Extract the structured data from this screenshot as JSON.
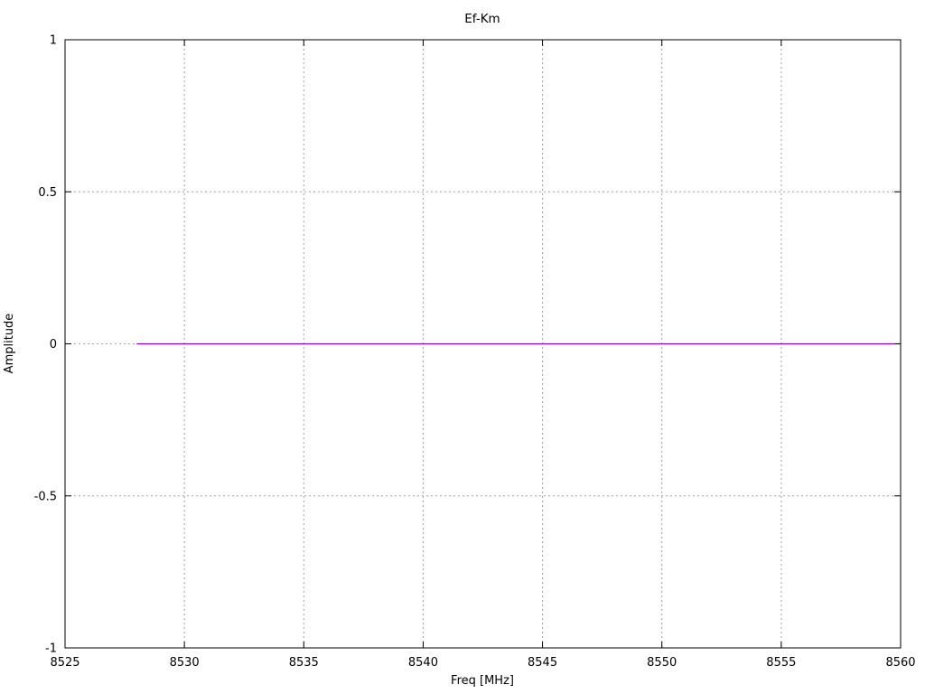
{
  "chart_data": {
    "type": "line",
    "title": "Ef-Km",
    "xlabel": "Freq [MHz]",
    "ylabel": "Amplitude",
    "xlim": [
      8525,
      8560
    ],
    "ylim": [
      -1,
      1
    ],
    "x_ticks": [
      8525,
      8530,
      8535,
      8540,
      8545,
      8550,
      8555,
      8560
    ],
    "y_ticks": [
      -1,
      -0.5,
      0,
      0.5,
      1
    ],
    "grid": true,
    "grid_style": "dotted",
    "grid_color": "#a0a0a0",
    "border_color": "#000000",
    "background_color": "#ffffff",
    "legend": "none",
    "series": [
      {
        "name": "Ef-Km",
        "color": "#9400d3",
        "x": [
          8528,
          8560
        ],
        "y": [
          0,
          0
        ]
      }
    ]
  }
}
